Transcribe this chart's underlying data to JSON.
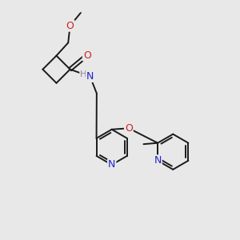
{
  "bg_color": "#e8e8e8",
  "bond_color": "#1a1a1a",
  "atom_colors": {
    "N": "#2222cc",
    "O": "#cc2222",
    "C": "#1a1a1a",
    "H": "#888888"
  }
}
